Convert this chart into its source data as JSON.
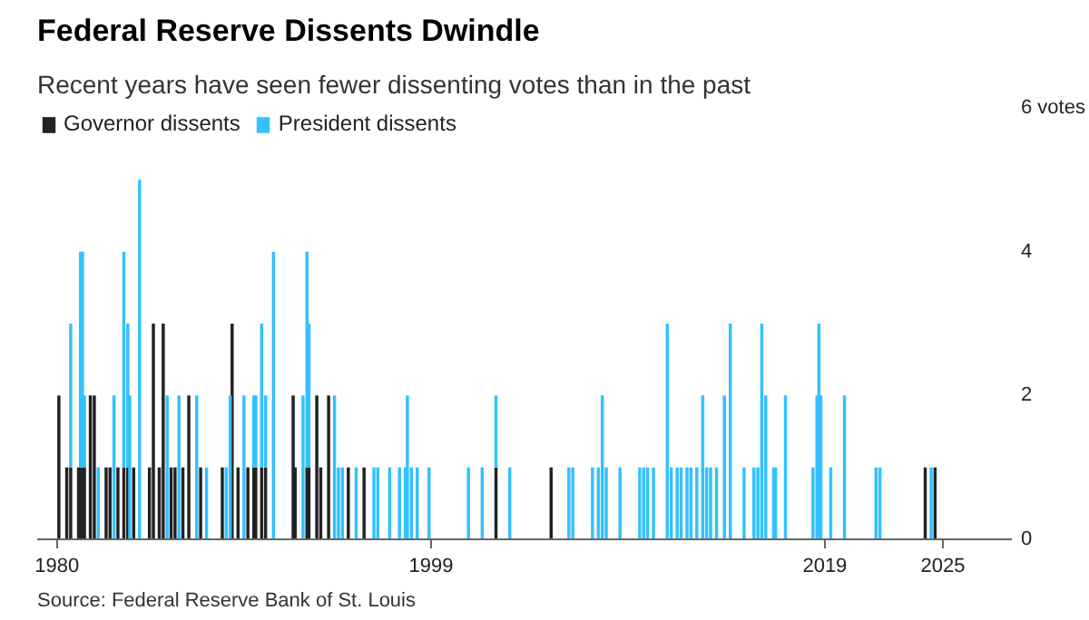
{
  "chart_data": {
    "type": "bar",
    "stacked": true,
    "title": "Federal Reserve Dissents Dwindle",
    "subtitle": "Recent years have seen fewer dissenting votes than in the past",
    "annotations": [
      "Source: Federal Reserve Bank of St. Louis"
    ],
    "x": [
      1980.1,
      1980.5,
      1980.7,
      1981.1,
      1981.2,
      1981.3,
      1981.4,
      1981.7,
      1981.9,
      1982.1,
      1982.5,
      1982.7,
      1982.9,
      1983.1,
      1983.4,
      1983.6,
      1983.7,
      1983.9,
      1984.2,
      1984.7,
      1984.9,
      1985.2,
      1985.4,
      1985.6,
      1985.8,
      1986.0,
      1986.2,
      1986.4,
      1986.7,
      1987.1,
      1987.3,
      1987.6,
      1988.4,
      1988.6,
      1988.8,
      1988.9,
      1989.2,
      1989.5,
      1989.7,
      1990.0,
      1990.1,
      1990.4,
      1990.6,
      1991.0,
      1992.0,
      1992.1,
      1992.5,
      1992.7,
      1992.8,
      1993.2,
      1993.4,
      1993.8,
      1994.1,
      1994.3,
      1994.5,
      1994.8,
      1995.2,
      1995.6,
      1996.1,
      1996.3,
      1996.9,
      1997.4,
      1997.7,
      1997.8,
      1998.0,
      1998.3,
      1998.9,
      2000.9,
      2001.6,
      2002.3,
      2003.0,
      2005.1,
      2006.0,
      2006.2,
      2007.2,
      2007.5,
      2007.7,
      2007.9,
      2008.6,
      2009.6,
      2009.8,
      2010.0,
      2010.3,
      2011.0,
      2011.2,
      2011.5,
      2011.7,
      2012.0,
      2012.2,
      2012.5,
      2012.8,
      2013.0,
      2013.2,
      2013.5,
      2013.9,
      2014.2,
      2014.9,
      2015.4,
      2015.6,
      2015.8,
      2016.0,
      2016.4,
      2016.5,
      2017.0,
      2018.4,
      2018.6,
      2018.7,
      2018.8,
      2019.3,
      2020.0,
      2021.6,
      2021.8,
      2024.1,
      2024.4,
      2024.6
    ],
    "series": [
      {
        "name": "Governor dissents",
        "color": "#222222",
        "values": [
          2,
          1,
          1,
          1,
          1,
          1,
          1,
          2,
          2,
          0,
          1,
          1,
          0,
          1,
          1,
          1,
          0,
          1,
          0,
          1,
          3,
          1,
          3,
          0,
          1,
          1,
          0,
          1,
          2,
          0,
          1,
          0,
          1,
          0,
          0,
          3,
          1,
          0,
          1,
          1,
          1,
          1,
          1,
          0,
          2,
          1,
          0,
          1,
          1,
          2,
          1,
          2,
          0,
          0,
          0,
          1,
          0,
          1,
          0,
          0,
          0,
          0,
          0,
          0,
          0,
          0,
          0,
          0,
          0,
          1,
          0,
          1,
          0,
          0,
          0,
          0,
          0,
          0,
          0,
          0,
          0,
          0,
          0,
          0,
          0,
          0,
          0,
          0,
          0,
          0,
          0,
          0,
          0,
          0,
          0,
          0,
          0,
          0,
          0,
          0,
          0,
          0,
          0,
          0,
          0,
          0,
          0,
          0,
          0,
          0,
          0,
          0,
          1,
          0,
          1
        ]
      },
      {
        "name": "President dissents",
        "color": "#33c1ff",
        "values": [
          0,
          0,
          2,
          0,
          3,
          3,
          1,
          0,
          0,
          1,
          0,
          0,
          2,
          0,
          3,
          2,
          2,
          0,
          5,
          0,
          0,
          0,
          0,
          2,
          0,
          0,
          2,
          0,
          0,
          2,
          0,
          1,
          0,
          1,
          2,
          0,
          0,
          2,
          0,
          1,
          1,
          2,
          1,
          4,
          0,
          0,
          2,
          3,
          2,
          0,
          0,
          0,
          2,
          1,
          1,
          0,
          1,
          0,
          1,
          1,
          1,
          1,
          1,
          2,
          1,
          1,
          1,
          1,
          1,
          1,
          1,
          0,
          1,
          1,
          1,
          1,
          2,
          1,
          1,
          1,
          1,
          1,
          1,
          3,
          1,
          1,
          1,
          1,
          1,
          1,
          2,
          1,
          1,
          1,
          2,
          3,
          1,
          1,
          1,
          3,
          2,
          1,
          1,
          2,
          1,
          2,
          3,
          2,
          1,
          2,
          1,
          1,
          0,
          1,
          0
        ]
      }
    ],
    "xlim": [
      1979,
      2028.5
    ],
    "xticks": [
      1980,
      1999,
      2019,
      2025
    ],
    "ylim": [
      0,
      6
    ],
    "yticks": [
      0,
      2,
      4,
      {
        "value": 6,
        "label": "6 votes"
      }
    ],
    "grid": false,
    "legend": "top left"
  }
}
